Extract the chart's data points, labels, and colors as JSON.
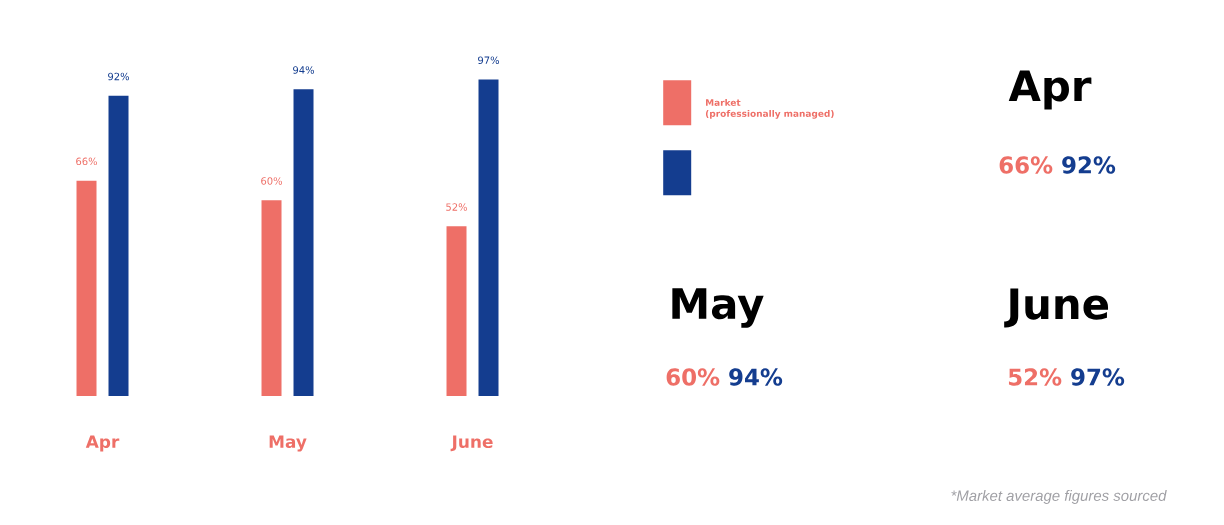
{
  "chart_data": {
    "type": "bar",
    "categories": [
      "Apr",
      "May",
      "June"
    ],
    "series": [
      {
        "name": "Market\n(professionally managed)",
        "color": "#ee6f67",
        "values": [
          66,
          60,
          52
        ],
        "value_labels": [
          "66%",
          "60%",
          "52%"
        ]
      },
      {
        "color": "#143d8f",
        "values": [
          92,
          94,
          97
        ],
        "value_labels": [
          "92%",
          "94%",
          "97%"
        ]
      }
    ],
    "legend": "right",
    "annotations": [
      "*Market average figures sourced"
    ]
  }
}
